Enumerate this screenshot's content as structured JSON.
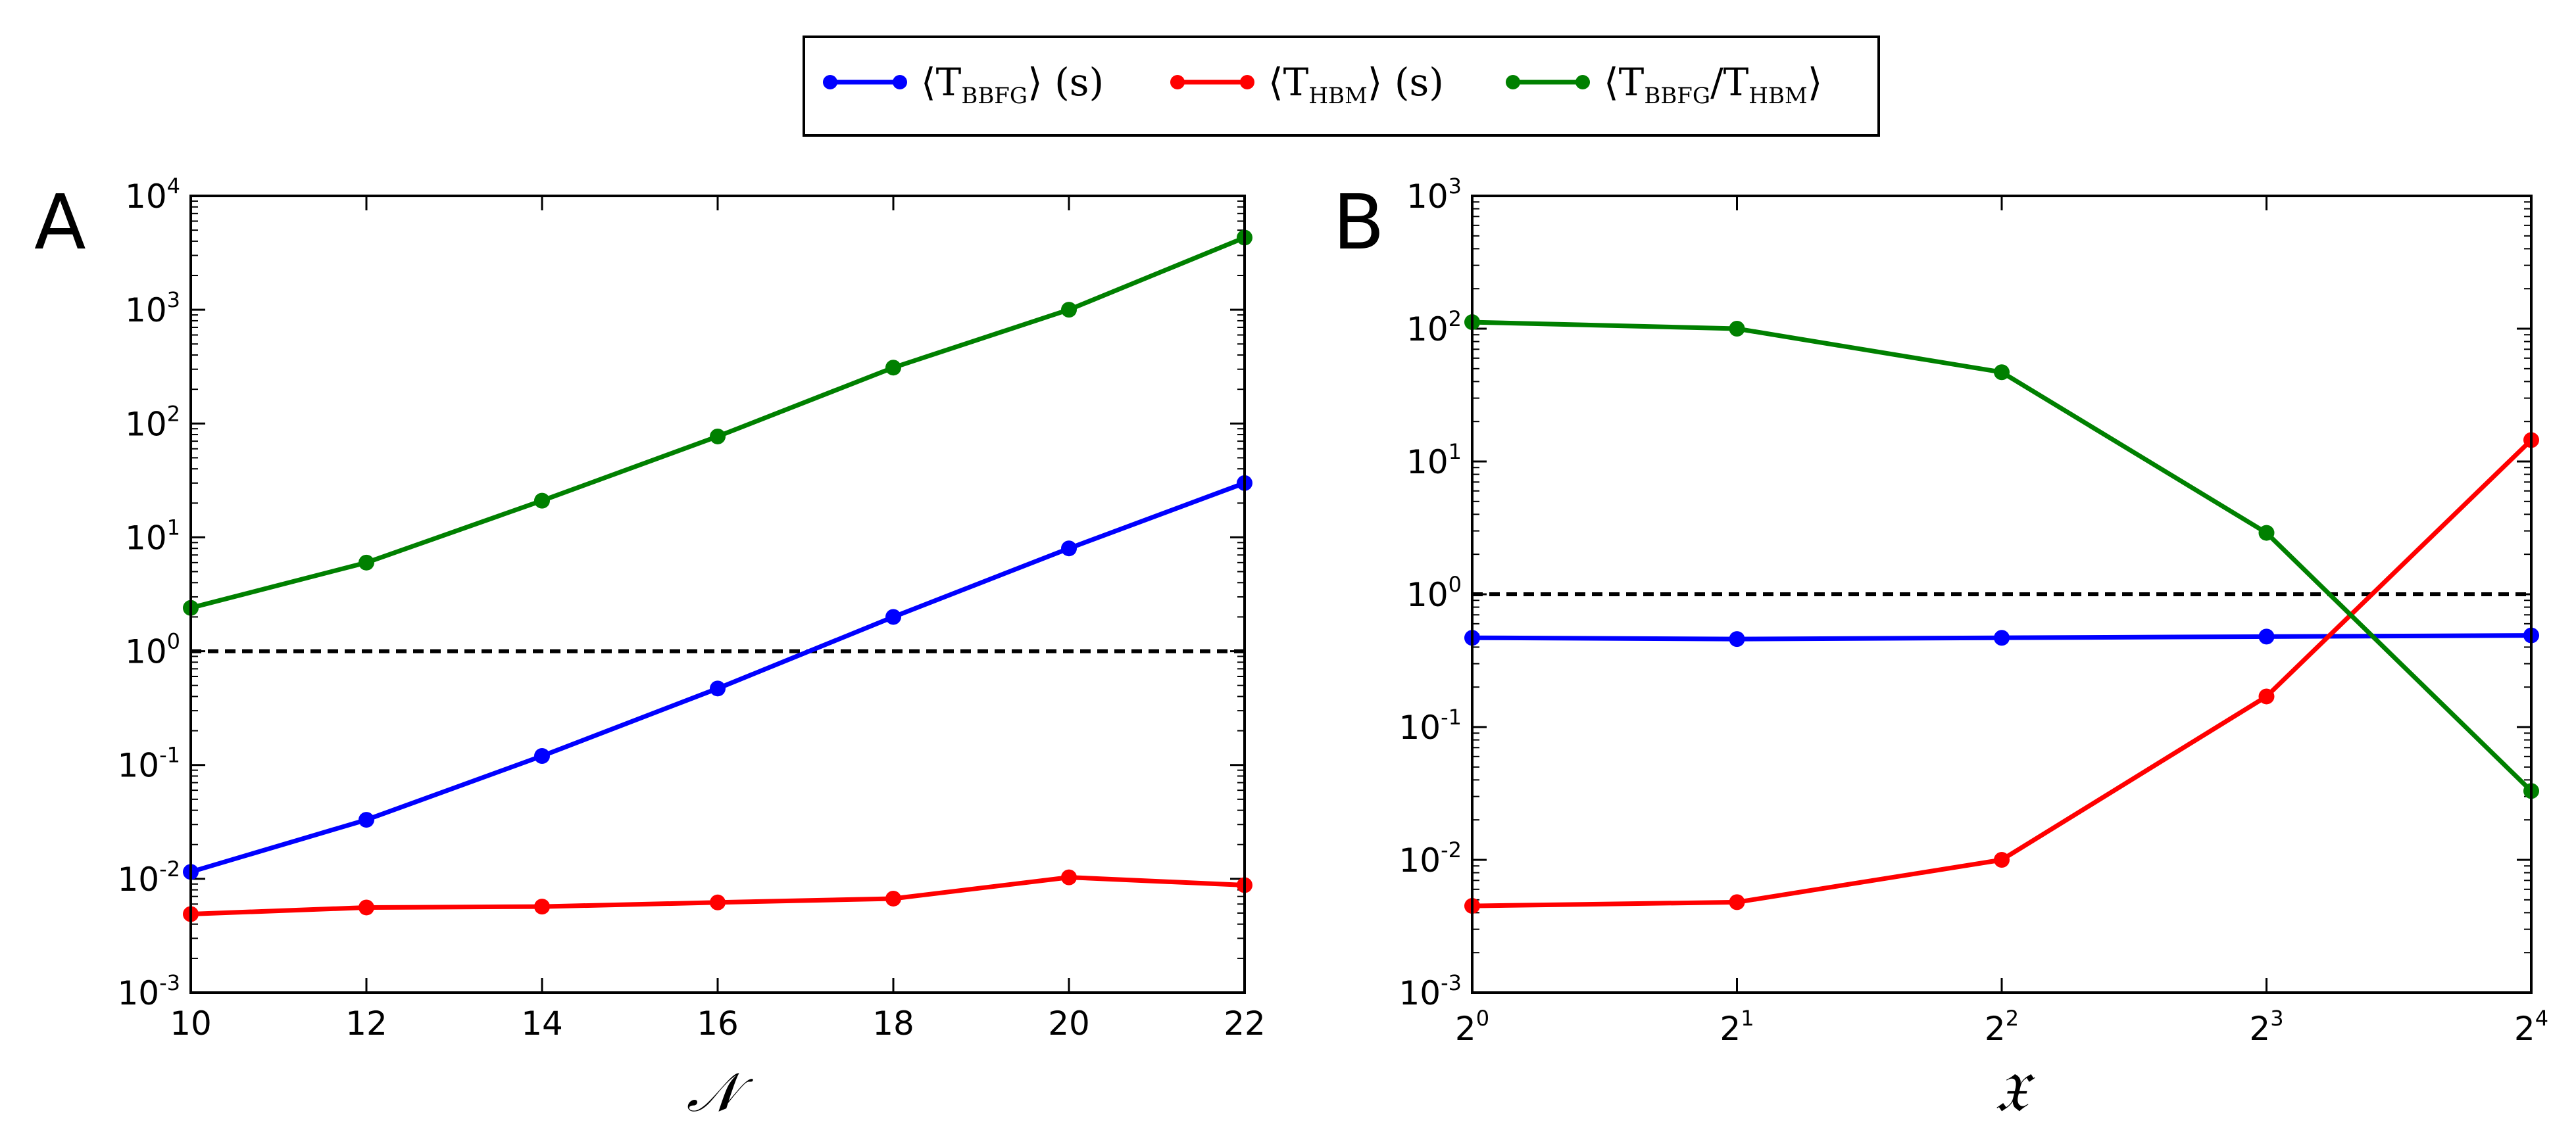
{
  "legend": {
    "entries": [
      {
        "main": "⟨T",
        "sub": "BBFG",
        "tail": "⟩ (s)",
        "color": "#0000ff"
      },
      {
        "main": "⟨T",
        "sub": "HBM",
        "tail": "⟩ (s)",
        "color": "#ff0000"
      },
      {
        "main": "⟨T",
        "sub": "BBFG",
        "mid": "/T",
        "sub2": "HBM",
        "tail": "⟩",
        "color": "#008000"
      }
    ]
  },
  "chart_data": [
    {
      "type": "line",
      "panel": "A",
      "xlabel": "𝒩",
      "x": [
        10,
        12,
        14,
        16,
        18,
        20,
        22
      ],
      "x_tick_labels": [
        "10",
        "12",
        "14",
        "16",
        "18",
        "20",
        "22"
      ],
      "xlim": [
        10,
        22
      ],
      "yscale": "log",
      "ylim": [
        0.001,
        10000
      ],
      "y_tick_labels": [
        {
          "base": "10",
          "exp": "-3"
        },
        {
          "base": "10",
          "exp": "-2"
        },
        {
          "base": "10",
          "exp": "-1"
        },
        {
          "base": "10",
          "exp": "0"
        },
        {
          "base": "10",
          "exp": "1"
        },
        {
          "base": "10",
          "exp": "2"
        },
        {
          "base": "10",
          "exp": "3"
        },
        {
          "base": "10",
          "exp": "4"
        }
      ],
      "reference_line": 1,
      "series": [
        {
          "name": "⟨T_BBFG⟩ (s)",
          "color": "#0000ff",
          "values": [
            0.0115,
            0.033,
            0.12,
            0.47,
            2.0,
            8.0,
            30.0
          ]
        },
        {
          "name": "⟨T_HBM⟩ (s)",
          "color": "#ff0000",
          "values": [
            0.0049,
            0.0056,
            0.0057,
            0.0062,
            0.0067,
            0.0103,
            0.0088
          ]
        },
        {
          "name": "⟨T_BBFG/T_HBM⟩",
          "color": "#008000",
          "values": [
            2.4,
            6.0,
            21.0,
            77.0,
            310.0,
            1000.0,
            4300.0
          ]
        }
      ]
    },
    {
      "type": "line",
      "panel": "B",
      "xlabel": "𝔛",
      "x": [
        1,
        2,
        4,
        8,
        16
      ],
      "xscale": "log2",
      "x_tick_labels": [
        {
          "base": "2",
          "exp": "0"
        },
        {
          "base": "2",
          "exp": "1"
        },
        {
          "base": "2",
          "exp": "2"
        },
        {
          "base": "2",
          "exp": "3"
        },
        {
          "base": "2",
          "exp": "4"
        }
      ],
      "xlim": [
        1,
        16
      ],
      "yscale": "log",
      "ylim": [
        0.001,
        1000
      ],
      "y_tick_labels": [
        {
          "base": "10",
          "exp": "-3"
        },
        {
          "base": "10",
          "exp": "-2"
        },
        {
          "base": "10",
          "exp": "-1"
        },
        {
          "base": "10",
          "exp": "0"
        },
        {
          "base": "10",
          "exp": "1"
        },
        {
          "base": "10",
          "exp": "2"
        },
        {
          "base": "10",
          "exp": "3"
        }
      ],
      "reference_line": 1,
      "series": [
        {
          "name": "⟨T_BBFG⟩ (s)",
          "color": "#0000ff",
          "values": [
            0.47,
            0.46,
            0.47,
            0.48,
            0.49
          ]
        },
        {
          "name": "⟨T_HBM⟩ (s)",
          "color": "#ff0000",
          "values": [
            0.0045,
            0.0048,
            0.01,
            0.17,
            14.5
          ]
        },
        {
          "name": "⟨T_BBFG/T_HBM⟩",
          "color": "#008000",
          "values": [
            112,
            100,
            47,
            2.9,
            0.033
          ]
        }
      ]
    }
  ]
}
